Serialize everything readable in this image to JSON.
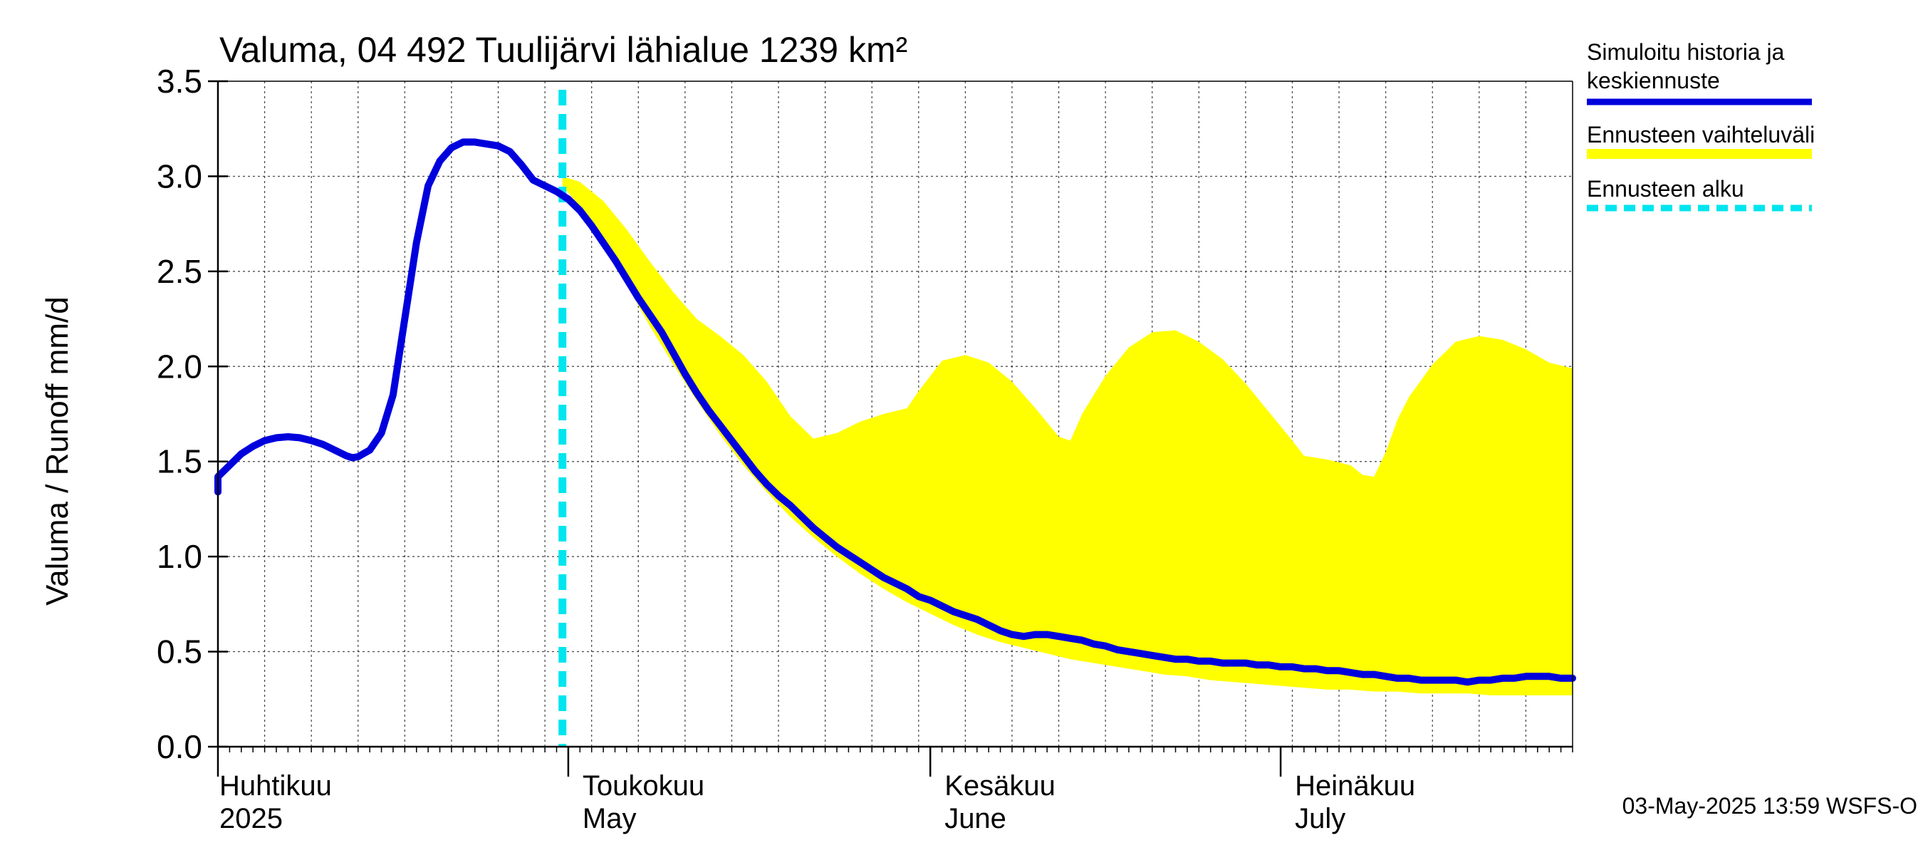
{
  "chart_data": {
    "type": "line",
    "title": "Valuma, 04 492 Tuulijärvi lähialue 1239 km²",
    "ylabel": "Valuma / Runoff     mm/d",
    "ylim": [
      0,
      3.5
    ],
    "yticks": [
      {
        "value": 0.0,
        "label": "0.0"
      },
      {
        "value": 0.5,
        "label": "0.5"
      },
      {
        "value": 1.0,
        "label": "1.0"
      },
      {
        "value": 1.5,
        "label": "1.5"
      },
      {
        "value": 2.0,
        "label": "2.0"
      },
      {
        "value": 2.5,
        "label": "2.5"
      },
      {
        "value": 3.0,
        "label": "3.0"
      },
      {
        "value": 3.5,
        "label": "3.5"
      }
    ],
    "xlim": [
      0,
      116
    ],
    "x_unit": "day since 2025-04-01",
    "month_ticks": [
      0,
      30,
      61,
      91
    ],
    "month_labels": [
      {
        "day": 0,
        "fi": "Huhtikuu",
        "en": "2025"
      },
      {
        "day": 30,
        "fi": "Toukokuu",
        "en": "May"
      },
      {
        "day": 61,
        "fi": "Kesäkuu",
        "en": "June"
      },
      {
        "day": 91,
        "fi": "Heinäkuu",
        "en": "July"
      }
    ],
    "forecast_start_day": 29.5,
    "history_series": {
      "name": "Simuloitu historia ja keskiennuste",
      "color": "#0000dd",
      "points": [
        [
          -1.5,
          1.34
        ],
        [
          0,
          1.42
        ],
        [
          1,
          1.48
        ],
        [
          2,
          1.54
        ],
        [
          3,
          1.58
        ],
        [
          4,
          1.61
        ],
        [
          5,
          1.625
        ],
        [
          6,
          1.63
        ],
        [
          7,
          1.625
        ],
        [
          8,
          1.61
        ],
        [
          9,
          1.59
        ],
        [
          10,
          1.56
        ],
        [
          11,
          1.53
        ],
        [
          11.5,
          1.52
        ],
        [
          12,
          1.525
        ],
        [
          13,
          1.56
        ],
        [
          14,
          1.65
        ],
        [
          15,
          1.85
        ],
        [
          16,
          2.25
        ],
        [
          17,
          2.65
        ],
        [
          18,
          2.95
        ],
        [
          19,
          3.08
        ],
        [
          20,
          3.15
        ],
        [
          21,
          3.18
        ],
        [
          22,
          3.18
        ],
        [
          23,
          3.17
        ],
        [
          24,
          3.16
        ],
        [
          25,
          3.13
        ],
        [
          26,
          3.06
        ],
        [
          27,
          2.98
        ],
        [
          28,
          2.95
        ],
        [
          29,
          2.92
        ],
        [
          30,
          2.88
        ],
        [
          31,
          2.82
        ],
        [
          32,
          2.74
        ],
        [
          33,
          2.65
        ],
        [
          34,
          2.56
        ],
        [
          35,
          2.46
        ],
        [
          36,
          2.36
        ],
        [
          37,
          2.27
        ],
        [
          38,
          2.18
        ],
        [
          39,
          2.07
        ],
        [
          40,
          1.96
        ],
        [
          41,
          1.86
        ],
        [
          42,
          1.77
        ],
        [
          43,
          1.69
        ],
        [
          44,
          1.61
        ],
        [
          45,
          1.53
        ],
        [
          46,
          1.45
        ],
        [
          47,
          1.38
        ],
        [
          48,
          1.32
        ],
        [
          49,
          1.27
        ],
        [
          50,
          1.21
        ],
        [
          51,
          1.15
        ],
        [
          52,
          1.1
        ],
        [
          53,
          1.05
        ],
        [
          54,
          1.01
        ],
        [
          55,
          0.97
        ],
        [
          56,
          0.93
        ],
        [
          57,
          0.89
        ],
        [
          58,
          0.86
        ],
        [
          59,
          0.83
        ],
        [
          60,
          0.79
        ],
        [
          61,
          0.77
        ],
        [
          62,
          0.74
        ],
        [
          63,
          0.71
        ],
        [
          64,
          0.69
        ],
        [
          65,
          0.67
        ],
        [
          66,
          0.64
        ],
        [
          67,
          0.61
        ],
        [
          68,
          0.59
        ],
        [
          69,
          0.58
        ],
        [
          70,
          0.59
        ],
        [
          71,
          0.59
        ],
        [
          72,
          0.58
        ],
        [
          73,
          0.57
        ],
        [
          74,
          0.56
        ],
        [
          75,
          0.54
        ],
        [
          76,
          0.53
        ],
        [
          77,
          0.51
        ],
        [
          78,
          0.5
        ],
        [
          79,
          0.49
        ],
        [
          80,
          0.48
        ],
        [
          81,
          0.47
        ],
        [
          82,
          0.46
        ],
        [
          83,
          0.46
        ],
        [
          84,
          0.45
        ],
        [
          85,
          0.45
        ],
        [
          86,
          0.44
        ],
        [
          87,
          0.44
        ],
        [
          88,
          0.44
        ],
        [
          89,
          0.43
        ],
        [
          90,
          0.43
        ],
        [
          91,
          0.42
        ],
        [
          92,
          0.42
        ],
        [
          93,
          0.41
        ],
        [
          94,
          0.41
        ],
        [
          95,
          0.4
        ],
        [
          96,
          0.4
        ],
        [
          97,
          0.39
        ],
        [
          98,
          0.38
        ],
        [
          99,
          0.38
        ],
        [
          100,
          0.37
        ],
        [
          101,
          0.36
        ],
        [
          102,
          0.36
        ],
        [
          103,
          0.35
        ],
        [
          104,
          0.35
        ],
        [
          105,
          0.35
        ],
        [
          106,
          0.35
        ],
        [
          107,
          0.34
        ],
        [
          108,
          0.35
        ],
        [
          109,
          0.35
        ],
        [
          110,
          0.36
        ],
        [
          111,
          0.36
        ],
        [
          112,
          0.37
        ],
        [
          113,
          0.37
        ],
        [
          114,
          0.37
        ],
        [
          115,
          0.36
        ],
        [
          116,
          0.36
        ]
      ]
    },
    "forecast_band": {
      "name": "Ennusteen vaihteluväli",
      "color": "#ffff00",
      "upper": [
        [
          29.5,
          3.0
        ],
        [
          31,
          2.97
        ],
        [
          33,
          2.87
        ],
        [
          35,
          2.72
        ],
        [
          37,
          2.55
        ],
        [
          39,
          2.39
        ],
        [
          41,
          2.25
        ],
        [
          43,
          2.16
        ],
        [
          45,
          2.06
        ],
        [
          47,
          1.92
        ],
        [
          49,
          1.74
        ],
        [
          51,
          1.62
        ],
        [
          53,
          1.65
        ],
        [
          55,
          1.71
        ],
        [
          57,
          1.75
        ],
        [
          59,
          1.78
        ],
        [
          60,
          1.87
        ],
        [
          62,
          2.03
        ],
        [
          64,
          2.06
        ],
        [
          66,
          2.02
        ],
        [
          68,
          1.92
        ],
        [
          70,
          1.78
        ],
        [
          72,
          1.63
        ],
        [
          73,
          1.61
        ],
        [
          74,
          1.75
        ],
        [
          76,
          1.95
        ],
        [
          78,
          2.1
        ],
        [
          80,
          2.18
        ],
        [
          82,
          2.19
        ],
        [
          84,
          2.13
        ],
        [
          86,
          2.04
        ],
        [
          88,
          1.91
        ],
        [
          90,
          1.76
        ],
        [
          92,
          1.61
        ],
        [
          93,
          1.53
        ],
        [
          95,
          1.51
        ],
        [
          97,
          1.48
        ],
        [
          98,
          1.43
        ],
        [
          99,
          1.42
        ],
        [
          100,
          1.55
        ],
        [
          101,
          1.72
        ],
        [
          102,
          1.84
        ],
        [
          104,
          2.01
        ],
        [
          106,
          2.13
        ],
        [
          108,
          2.16
        ],
        [
          110,
          2.14
        ],
        [
          112,
          2.09
        ],
        [
          114,
          2.02
        ],
        [
          116,
          1.99
        ]
      ],
      "lower": [
        [
          29.5,
          2.95
        ],
        [
          31,
          2.84
        ],
        [
          33,
          2.64
        ],
        [
          35,
          2.43
        ],
        [
          37,
          2.21
        ],
        [
          39,
          2.01
        ],
        [
          41,
          1.82
        ],
        [
          43,
          1.64
        ],
        [
          45,
          1.48
        ],
        [
          47,
          1.34
        ],
        [
          49,
          1.21
        ],
        [
          51,
          1.1
        ],
        [
          53,
          1.0
        ],
        [
          55,
          0.91
        ],
        [
          57,
          0.83
        ],
        [
          59,
          0.76
        ],
        [
          61,
          0.7
        ],
        [
          63,
          0.64
        ],
        [
          65,
          0.59
        ],
        [
          67,
          0.55
        ],
        [
          69,
          0.52
        ],
        [
          71,
          0.49
        ],
        [
          73,
          0.46
        ],
        [
          75,
          0.44
        ],
        [
          77,
          0.42
        ],
        [
          79,
          0.4
        ],
        [
          81,
          0.38
        ],
        [
          83,
          0.37
        ],
        [
          85,
          0.35
        ],
        [
          87,
          0.34
        ],
        [
          89,
          0.33
        ],
        [
          91,
          0.32
        ],
        [
          93,
          0.31
        ],
        [
          95,
          0.3
        ],
        [
          97,
          0.3
        ],
        [
          99,
          0.29
        ],
        [
          101,
          0.29
        ],
        [
          103,
          0.28
        ],
        [
          105,
          0.28
        ],
        [
          107,
          0.28
        ],
        [
          109,
          0.27
        ],
        [
          111,
          0.27
        ],
        [
          113,
          0.27
        ],
        [
          116,
          0.27
        ]
      ]
    },
    "legend": [
      {
        "label_lines": [
          "Simuloitu historia ja",
          "keskiennuste"
        ],
        "style": "line",
        "color": "#0000dd"
      },
      {
        "label_lines": [
          "Ennusteen vaihteluväli"
        ],
        "style": "band",
        "color": "#ffff00"
      },
      {
        "label_lines": [
          "Ennusteen alku"
        ],
        "style": "dashed",
        "color": "#00e5ee"
      }
    ],
    "footer": "03-May-2025 13:59 WSFS-O"
  }
}
